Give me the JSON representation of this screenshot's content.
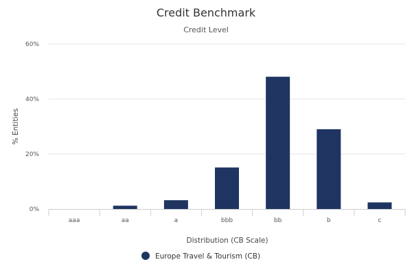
{
  "chart_data": {
    "type": "bar",
    "title": "Credit Benchmark",
    "subtitle": "Credit Level",
    "xlabel": "Distribution (CB Scale)",
    "ylabel": "% Entities",
    "categories": [
      "aaa",
      "aa",
      "a",
      "bbb",
      "bb",
      "b",
      "c"
    ],
    "series": [
      {
        "name": "Europe Travel & Tourism (CB)",
        "color": "#1f3461",
        "values": [
          0,
          1.2,
          3.2,
          15.1,
          48.1,
          29.0,
          2.4
        ]
      }
    ],
    "ylim": [
      0,
      60
    ],
    "yticks": [
      0,
      20,
      40,
      60
    ],
    "ytick_labels": [
      "0%",
      "20%",
      "40%",
      "60%"
    ],
    "grid": true,
    "legend": "bottom-center"
  }
}
